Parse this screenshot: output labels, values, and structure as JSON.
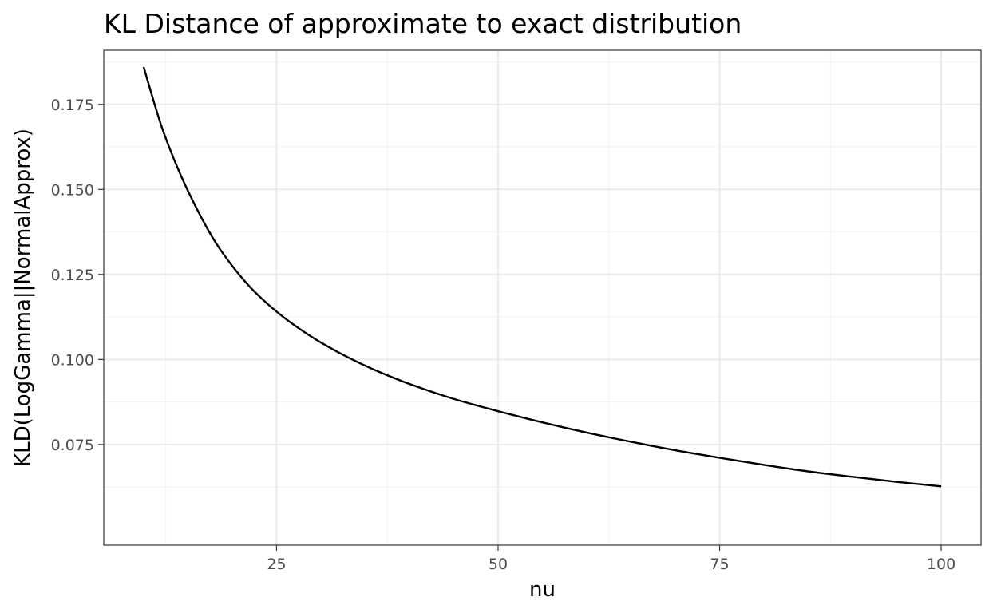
{
  "chart_data": {
    "type": "line",
    "title": "KL Distance of approximate to exact distribution",
    "xlabel": "nu",
    "ylabel": "KLD(LogGamma||NormalApprox)",
    "xlim": [
      5.5,
      104.5
    ],
    "ylim": [
      0.0454,
      0.1909
    ],
    "x_ticks": [
      25,
      50,
      75,
      100
    ],
    "y_ticks": [
      0.075,
      0.1,
      0.125,
      0.15,
      0.175
    ],
    "x_tick_labels": [
      "25",
      "50",
      "75",
      "100"
    ],
    "y_tick_labels": [
      "0.075",
      "0.100",
      "0.125",
      "0.150",
      "0.175"
    ],
    "grid": true,
    "theme": "bw",
    "colors": {
      "line": "#000000",
      "grid_major": "#ebebeb",
      "grid_minor": "#f4f4f4",
      "panel_border": "#333333",
      "tick_label": "#4d4d4d"
    },
    "series": [
      {
        "x": [
          10,
          12,
          14,
          16,
          18,
          20,
          22,
          24,
          26,
          28,
          30,
          33,
          36,
          40,
          45,
          50,
          55,
          60,
          65,
          70,
          75,
          80,
          85,
          90,
          95,
          100
        ],
        "y": [
          0.186,
          0.1687,
          0.1553,
          0.1443,
          0.1349,
          0.1275,
          0.1213,
          0.1163,
          0.112,
          0.1083,
          0.105,
          0.1007,
          0.097,
          0.0928,
          0.0884,
          0.0848,
          0.0815,
          0.0785,
          0.0758,
          0.0733,
          0.0711,
          0.069,
          0.0671,
          0.0655,
          0.064,
          0.0627
        ]
      }
    ]
  }
}
